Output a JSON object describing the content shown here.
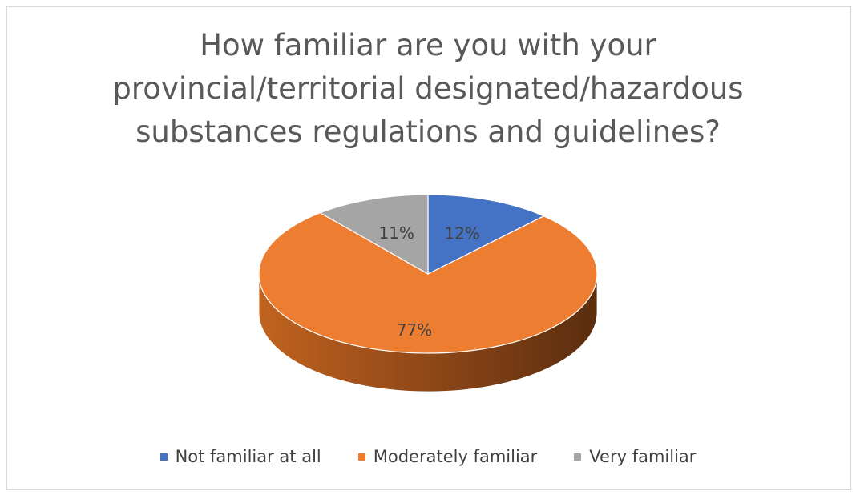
{
  "chart_data": {
    "type": "pie",
    "title_lines": [
      "How familiar are you with your",
      "provincial/territorial designated/hazardous",
      "substances regulations and guidelines?"
    ],
    "title": "How familiar are you with your provincial/territorial designated/hazardous substances regulations and guidelines?",
    "slices": [
      {
        "name": "Not familiar at all",
        "value": 12,
        "label": "12%",
        "color": "#4472c4"
      },
      {
        "name": "Moderately familiar",
        "value": 77,
        "label": "77%",
        "color": "#ed7d31"
      },
      {
        "name": "Very familiar",
        "value": 11,
        "label": "11%",
        "color": "#a5a5a5"
      }
    ],
    "legend_position": "bottom",
    "style": "3d"
  }
}
